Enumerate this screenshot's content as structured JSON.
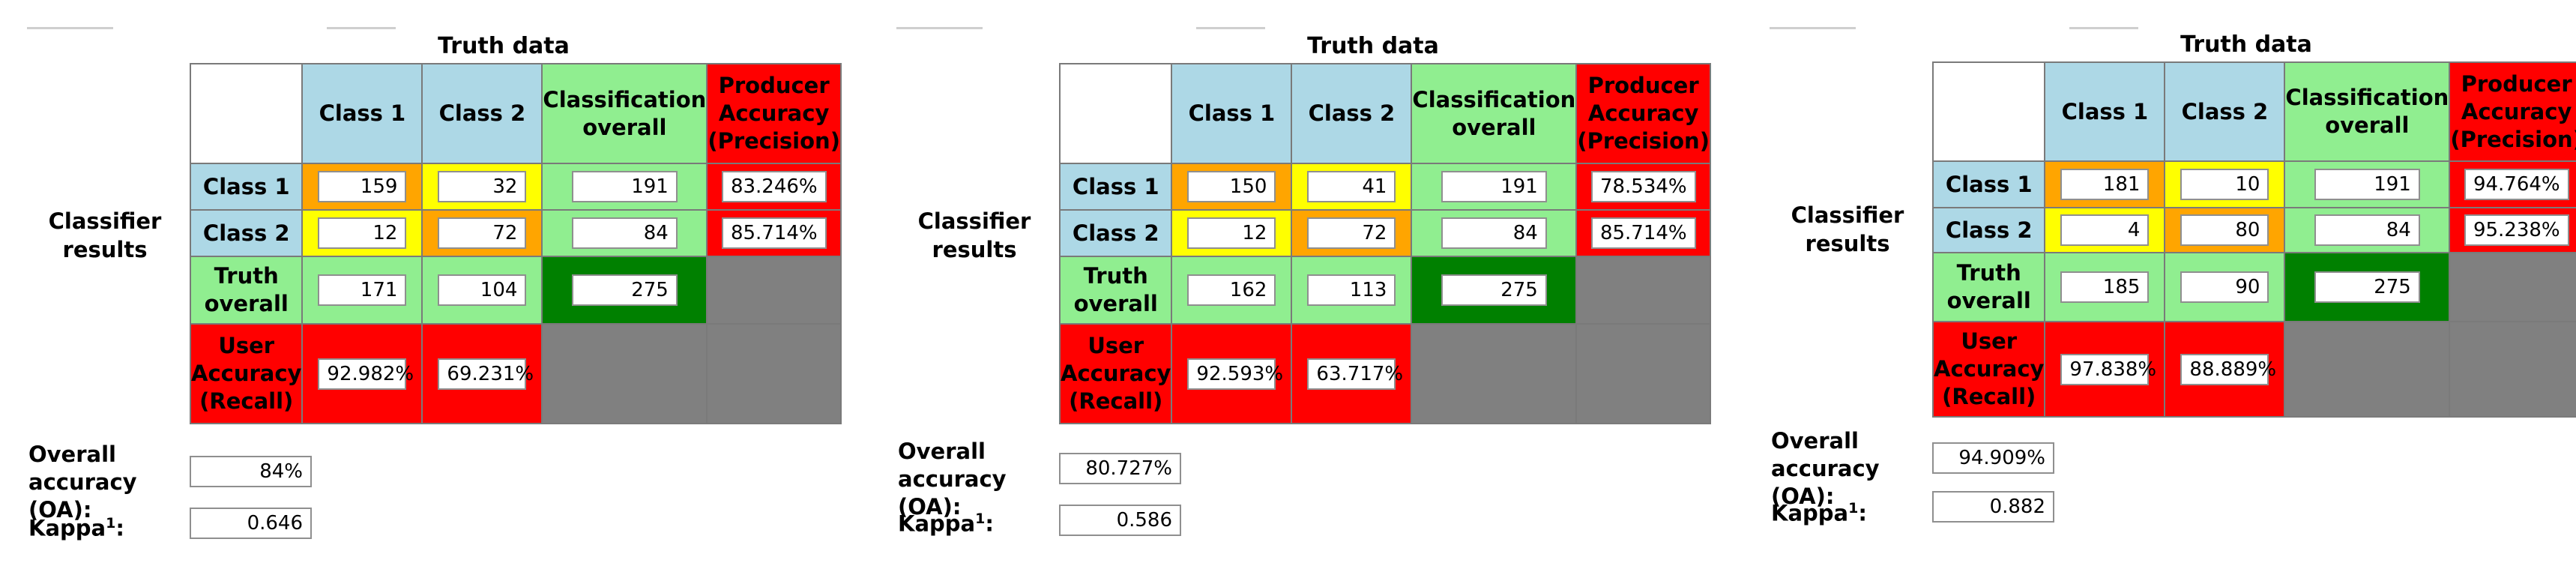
{
  "labels": {
    "truth_data": "Truth data",
    "classifier_results": "Classifier results",
    "class_1": "Class 1",
    "class_2": "Class 2",
    "classification_overall": "Classification overall",
    "producer_accuracy": "Producer Accuracy (Precision)",
    "truth_overall": "Truth overall",
    "user_accuracy": "User Accuracy (Recall)",
    "overall_accuracy": "Overall accuracy (OA):",
    "kappa": "Kappa",
    "kappa_sup": "1",
    "kappa_colon": ":"
  },
  "colors": {
    "header_blue": "#add8e6",
    "overall_green": "#90ee90",
    "accuracy_red": "#ff0000",
    "correct_orange": "#ffa500",
    "error_yellow": "#ffff00",
    "total_dark_green": "#008000",
    "empty_gray": "#808080"
  },
  "panels": [
    {
      "rows": [
        {
          "c1": "159",
          "c2": "32",
          "overall": "191",
          "producer": "83.246%"
        },
        {
          "c1": "12",
          "c2": "72",
          "overall": "84",
          "producer": "85.714%"
        }
      ],
      "truth_overall": {
        "c1": "171",
        "c2": "104",
        "total": "275"
      },
      "user_accuracy": {
        "c1": "92.982%",
        "c2": "69.231%"
      },
      "oa": "84%",
      "kappa": "0.646"
    },
    {
      "rows": [
        {
          "c1": "150",
          "c2": "41",
          "overall": "191",
          "producer": "78.534%"
        },
        {
          "c1": "12",
          "c2": "72",
          "overall": "84",
          "producer": "85.714%"
        }
      ],
      "truth_overall": {
        "c1": "162",
        "c2": "113",
        "total": "275"
      },
      "user_accuracy": {
        "c1": "92.593%",
        "c2": "63.717%"
      },
      "oa": "80.727%",
      "kappa": "0.586"
    },
    {
      "rows": [
        {
          "c1": "181",
          "c2": "10",
          "overall": "191",
          "producer": "94.764%"
        },
        {
          "c1": "4",
          "c2": "80",
          "overall": "84",
          "producer": "95.238%"
        }
      ],
      "truth_overall": {
        "c1": "185",
        "c2": "90",
        "total": "275"
      },
      "user_accuracy": {
        "c1": "97.838%",
        "c2": "88.889%"
      },
      "oa": "94.909%",
      "kappa": "0.882"
    }
  ]
}
